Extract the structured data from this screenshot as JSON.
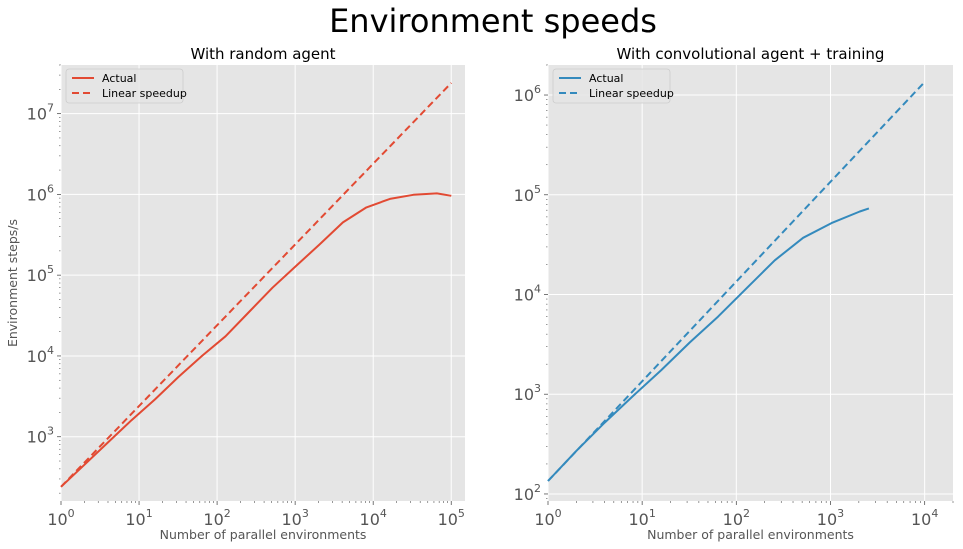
{
  "figure": {
    "title": "Environment speeds"
  },
  "chart_data": [
    {
      "type": "line",
      "title": "With random agent",
      "xlabel": "Number of parallel environments",
      "ylabel": "Environment steps/s",
      "xscale": "log",
      "yscale": "log",
      "xlim": [
        1,
        150000
      ],
      "ylim": [
        160,
        40000000
      ],
      "xticks": [
        {
          "base": "10",
          "exp": "0"
        },
        {
          "base": "10",
          "exp": "1"
        },
        {
          "base": "10",
          "exp": "2"
        },
        {
          "base": "10",
          "exp": "3"
        },
        {
          "base": "10",
          "exp": "4"
        },
        {
          "base": "10",
          "exp": "5"
        }
      ],
      "yticks": [
        {
          "base": "10",
          "exp": "3"
        },
        {
          "base": "10",
          "exp": "4"
        },
        {
          "base": "10",
          "exp": "5"
        },
        {
          "base": "10",
          "exp": "6"
        },
        {
          "base": "10",
          "exp": "7"
        }
      ],
      "grid": true,
      "legend_position": "top-left",
      "series": [
        {
          "name": "Actual",
          "color": "#E24A33",
          "style": "solid",
          "x": [
            1,
            2,
            4,
            8,
            16,
            32,
            64,
            128,
            256,
            512,
            1024,
            2048,
            4096,
            8192,
            16384,
            32768,
            65536,
            100000
          ],
          "y": [
            240,
            450,
            850,
            1600,
            2900,
            5500,
            10000,
            17500,
            35000,
            70000,
            130000,
            240000,
            450000,
            690000,
            880000,
            990000,
            1030000,
            960000
          ]
        },
        {
          "name": "Linear speedup",
          "color": "#E24A33",
          "style": "dashed",
          "x": [
            1,
            100000
          ],
          "y": [
            240,
            24000000
          ]
        }
      ]
    },
    {
      "type": "line",
      "title": "With convolutional agent + training",
      "xlabel": "Number of parallel environments",
      "ylabel": "",
      "xscale": "log",
      "yscale": "log",
      "xlim": [
        1,
        20000
      ],
      "ylim": [
        85,
        2000000
      ],
      "xticks": [
        {
          "base": "10",
          "exp": "0"
        },
        {
          "base": "10",
          "exp": "1"
        },
        {
          "base": "10",
          "exp": "2"
        },
        {
          "base": "10",
          "exp": "3"
        },
        {
          "base": "10",
          "exp": "4"
        }
      ],
      "yticks": [
        {
          "base": "10",
          "exp": "2"
        },
        {
          "base": "10",
          "exp": "3"
        },
        {
          "base": "10",
          "exp": "4"
        },
        {
          "base": "10",
          "exp": "5"
        },
        {
          "base": "10",
          "exp": "6"
        }
      ],
      "grid": true,
      "legend_position": "top-left",
      "series": [
        {
          "name": "Actual",
          "color": "#348ABD",
          "style": "solid",
          "x": [
            1,
            2,
            4,
            8,
            16,
            32,
            64,
            128,
            256,
            512,
            1024,
            2048,
            2560
          ],
          "y": [
            135,
            270,
            520,
            960,
            1750,
            3300,
            6000,
            11500,
            22000,
            37000,
            52000,
            68000,
            73000
          ]
        },
        {
          "name": "Linear speedup",
          "color": "#348ABD",
          "style": "dashed",
          "x": [
            1,
            10000
          ],
          "y": [
            135,
            1350000
          ]
        }
      ]
    }
  ]
}
